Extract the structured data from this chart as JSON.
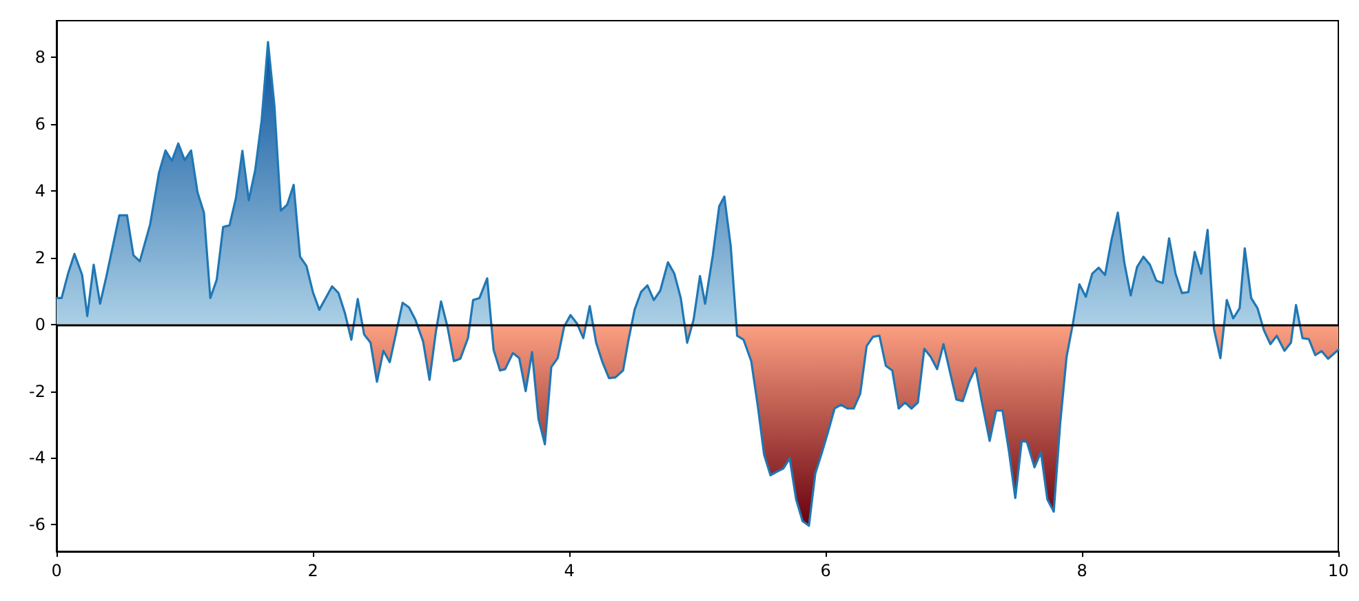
{
  "chart_data": {
    "type": "area",
    "xlim": [
      0,
      10
    ],
    "xticks": [
      0,
      2,
      4,
      6,
      8,
      10
    ],
    "ylim": [
      -6.8,
      9.1
    ],
    "yticks": [
      -6,
      -4,
      -2,
      0,
      2,
      4,
      6,
      8
    ],
    "grid": false,
    "marker": "none",
    "line_style": "solid",
    "ref_lines": [
      {
        "axis": "y",
        "value": 0,
        "color": "#000000"
      }
    ],
    "series": [
      {
        "color": "#1f77b4",
        "x": [
          0,
          0.04,
          0.09,
          0.14,
          0.2,
          0.24,
          0.29,
          0.34,
          0.39,
          0.49,
          0.55,
          0.6,
          0.65,
          0.73,
          0.8,
          0.85,
          0.9,
          0.95,
          1.0,
          1.05,
          1.1,
          1.15,
          1.2,
          1.25,
          1.3,
          1.35,
          1.4,
          1.45,
          1.5,
          1.55,
          1.6,
          1.65,
          1.7,
          1.75,
          1.8,
          1.85,
          1.9,
          1.95,
          2.0,
          2.05,
          2.1,
          2.15,
          2.2,
          2.25,
          2.3,
          2.35,
          2.4,
          2.45,
          2.5,
          2.55,
          2.6,
          2.7,
          2.75,
          2.8,
          2.86,
          2.91,
          2.96,
          3.0,
          3.05,
          3.1,
          3.15,
          3.21,
          3.25,
          3.3,
          3.36,
          3.41,
          3.46,
          3.5,
          3.56,
          3.61,
          3.66,
          3.71,
          3.76,
          3.81,
          3.86,
          3.91,
          3.96,
          4.01,
          4.06,
          4.11,
          4.16,
          4.21,
          4.26,
          4.31,
          4.36,
          4.42,
          4.46,
          4.51,
          4.56,
          4.61,
          4.66,
          4.71,
          4.77,
          4.82,
          4.87,
          4.92,
          4.97,
          5.02,
          5.06,
          5.12,
          5.17,
          5.21,
          5.26,
          5.31,
          5.36,
          5.42,
          5.47,
          5.52,
          5.57,
          5.62,
          5.67,
          5.72,
          5.77,
          5.82,
          5.87,
          5.92,
          5.97,
          6.02,
          6.07,
          6.12,
          6.17,
          6.22,
          6.27,
          6.32,
          6.37,
          6.42,
          6.47,
          6.52,
          6.57,
          6.62,
          6.67,
          6.72,
          6.77,
          6.82,
          6.87,
          6.92,
          6.97,
          7.02,
          7.07,
          7.12,
          7.17,
          7.22,
          7.28,
          7.33,
          7.38,
          7.43,
          7.48,
          7.53,
          7.57,
          7.63,
          7.68,
          7.73,
          7.78,
          7.83,
          7.88,
          7.93,
          7.98,
          8.03,
          8.08,
          8.13,
          8.18,
          8.23,
          8.28,
          8.33,
          8.38,
          8.43,
          8.48,
          8.53,
          8.58,
          8.63,
          8.68,
          8.73,
          8.78,
          8.83,
          8.88,
          8.93,
          8.98,
          9.03,
          9.08,
          9.13,
          9.18,
          9.23,
          9.27,
          9.32,
          9.37,
          9.42,
          9.47,
          9.52,
          9.58,
          9.63,
          9.67,
          9.72,
          9.77,
          9.82,
          9.87,
          9.92,
          10.0
        ],
        "values": [
          0.79,
          0.79,
          1.52,
          2.11,
          1.48,
          0.25,
          1.79,
          0.62,
          1.45,
          3.27,
          3.27,
          2.07,
          1.89,
          2.99,
          4.55,
          5.21,
          4.9,
          5.42,
          4.92,
          5.21,
          3.96,
          3.35,
          0.79,
          1.34,
          2.92,
          2.97,
          3.79,
          5.2,
          3.72,
          4.62,
          6.1,
          8.46,
          6.55,
          3.41,
          3.59,
          4.18,
          2.03,
          1.75,
          0.97,
          0.44,
          0.79,
          1.14,
          0.94,
          0.34,
          -0.46,
          0.76,
          -0.3,
          -0.55,
          -1.72,
          -0.79,
          -1.13,
          0.65,
          0.51,
          0.14,
          -0.51,
          -1.66,
          -0.21,
          0.69,
          -0.07,
          -1.1,
          -1.03,
          -0.41,
          0.73,
          0.79,
          1.38,
          -0.76,
          -1.38,
          -1.34,
          -0.86,
          -1.01,
          -2.0,
          -0.83,
          -2.83,
          -3.59,
          -1.28,
          -1.01,
          -0.07,
          0.28,
          0.03,
          -0.41,
          0.55,
          -0.55,
          -1.14,
          -1.61,
          -1.59,
          -1.38,
          -0.51,
          0.44,
          0.97,
          1.17,
          0.73,
          1.01,
          1.86,
          1.52,
          0.79,
          -0.55,
          0.14,
          1.45,
          0.62,
          2.07,
          3.54,
          3.83,
          2.34,
          -0.34,
          -0.46,
          -1.1,
          -2.41,
          -3.9,
          -4.52,
          -4.41,
          -4.32,
          -4.01,
          -5.24,
          -5.89,
          -6.03,
          -4.46,
          -3.86,
          -3.21,
          -2.52,
          -2.41,
          -2.52,
          -2.52,
          -2.08,
          -0.65,
          -0.37,
          -0.34,
          -1.24,
          -1.38,
          -2.52,
          -2.34,
          -2.52,
          -2.34,
          -0.73,
          -0.97,
          -1.34,
          -0.59,
          -1.42,
          -2.25,
          -2.3,
          -1.72,
          -1.31,
          -2.34,
          -3.49,
          -2.58,
          -2.58,
          -3.79,
          -5.2,
          -3.49,
          -3.52,
          -4.28,
          -3.83,
          -5.24,
          -5.61,
          -2.97,
          -0.97,
          0.04,
          1.2,
          0.83,
          1.52,
          1.7,
          1.48,
          2.52,
          3.35,
          1.86,
          0.87,
          1.72,
          2.03,
          1.79,
          1.31,
          1.24,
          2.58,
          1.52,
          0.94,
          0.97,
          2.17,
          1.52,
          2.83,
          -0.14,
          -1.01,
          0.73,
          0.18,
          0.48,
          2.28,
          0.79,
          0.48,
          -0.18,
          -0.59,
          -0.34,
          -0.79,
          -0.55,
          0.58,
          -0.41,
          -0.44,
          -0.92,
          -0.8,
          -1.03,
          -0.76
        ]
      }
    ]
  }
}
